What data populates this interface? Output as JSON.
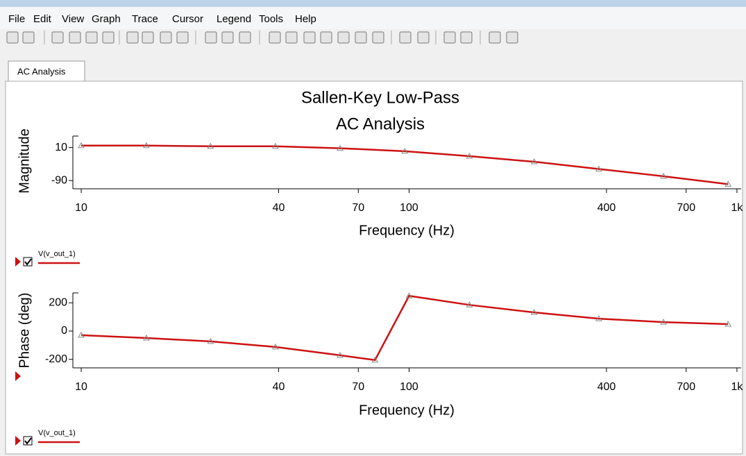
{
  "menu": [
    "File",
    "Edit",
    "View",
    "Graph",
    "Trace",
    "Cursor",
    "Legend",
    "Tools",
    "Help"
  ],
  "tabs": [
    "AC Analysis"
  ],
  "chart_data": [
    {
      "type": "line",
      "title": "Sallen-Key Low-Pass",
      "subtitle": "AC Analysis",
      "x_label": "Frequency (Hz)",
      "y_label": "Magnitude",
      "xlog": true,
      "grid": false,
      "xlim": [
        9.43,
        1030
      ],
      "xticks": [
        10,
        40,
        70,
        100,
        400,
        700,
        {
          "value": 1000,
          "label": "1k"
        }
      ],
      "ylim": [
        -115,
        45
      ],
      "yticks": [
        10,
        -90
      ],
      "legend": "bottom-left",
      "series": [
        {
          "name": "V(v_out_1)",
          "color": "#cc1111",
          "x": [
            10,
            15.8,
            24.8,
            39.1,
            61.6,
            97,
            152.8,
            240.7,
            379,
            597,
            940
          ],
          "values": [
            16,
            16,
            14,
            14,
            8,
            -1,
            -16,
            -33,
            -55,
            -77,
            -101
          ]
        }
      ]
    },
    {
      "type": "line",
      "x_label": "Frequency (Hz)",
      "y_label": "Phase (deg)",
      "xlog": true,
      "grid": false,
      "xlim": [
        9.43,
        1030
      ],
      "xticks": [
        10,
        40,
        70,
        100,
        400,
        700,
        {
          "value": 1000,
          "label": "1k"
        }
      ],
      "ylim": [
        -260,
        270
      ],
      "yticks": [
        200,
        0,
        -200
      ],
      "legend": "bottom-left",
      "series": [
        {
          "name": "V(v_out_1)",
          "color": "#cc1111",
          "x": [
            10,
            15.8,
            24.8,
            39.1,
            61.6,
            78.7,
            100,
            152.8,
            240.7,
            379,
            597,
            940
          ],
          "values": [
            -29,
            -49,
            -73,
            -112,
            -171,
            -205,
            249,
            185,
            132,
            88,
            63,
            49
          ]
        }
      ]
    }
  ]
}
